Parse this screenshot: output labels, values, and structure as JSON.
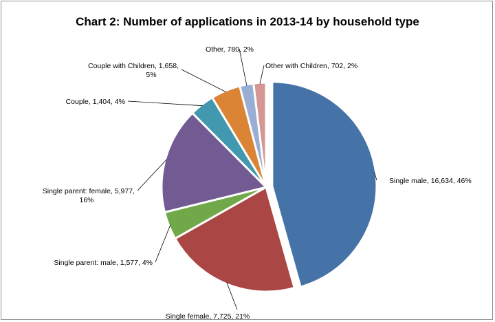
{
  "chart_data": {
    "type": "pie",
    "title": "Chart 2:  Number of applications in 2013-14 by household type",
    "slices": [
      {
        "name": "Single male",
        "value": 16634,
        "percent": 46,
        "color": "#4572a7",
        "label_lines": [
          "Single male, 16,634, 46%"
        ]
      },
      {
        "name": "Single female",
        "value": 7725,
        "percent": 21,
        "color": "#aa4643",
        "label_lines": [
          "Single female, 7,725, 21%"
        ]
      },
      {
        "name": "Single parent: male",
        "value": 1577,
        "percent": 4,
        "color": "#71a94a",
        "label_lines": [
          "Single parent: male, 1,577, 4%"
        ]
      },
      {
        "name": "Single parent: female",
        "value": 5977,
        "percent": 16,
        "color": "#725a93",
        "label_lines": [
          "Single parent: female, 5,977,",
          "16%"
        ]
      },
      {
        "name": "Couple",
        "value": 1404,
        "percent": 4,
        "color": "#4198af",
        "label_lines": [
          "Couple, 1,404, 4%"
        ]
      },
      {
        "name": "Couple with Children",
        "value": 1658,
        "percent": 5,
        "color": "#db8436",
        "label_lines": [
          "Couple with Children, 1,658,",
          "5%"
        ]
      },
      {
        "name": "Other",
        "value": 780,
        "percent": 2,
        "color": "#98afd3",
        "label_lines": [
          "Other, 780, 2%"
        ]
      },
      {
        "name": "Other with Children",
        "value": 702,
        "percent": 2,
        "color": "#d69794",
        "label_lines": [
          "Other with Children, 702, 2%"
        ]
      }
    ]
  }
}
